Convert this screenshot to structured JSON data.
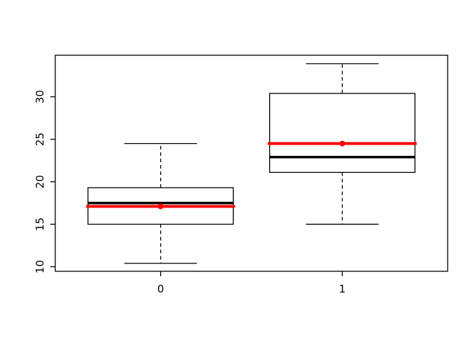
{
  "window": {
    "background": "#FFFFFF"
  },
  "chart_data": {
    "type": "boxplot",
    "title": "",
    "xlabel": "",
    "ylabel": "",
    "categories": [
      "0",
      "1"
    ],
    "x_tick_labels": [
      "0",
      "1"
    ],
    "y_tick_labels": [
      "10",
      "15",
      "20",
      "25",
      "30"
    ],
    "y_ticks": [
      10,
      15,
      20,
      25,
      30
    ],
    "ylim": [
      9.46,
      34.89
    ],
    "xlim": [
      0.42,
      2.58
    ],
    "positions": [
      1,
      2
    ],
    "box_half_width": 0.4,
    "staple_half_width": 0.2,
    "mean_line_half_width": 0.41,
    "grid": false,
    "legend": false,
    "series": [
      {
        "name": "0",
        "whisker_low": 10.4,
        "q1": 15.0,
        "median": 17.5,
        "q3": 19.3,
        "whisker_high": 24.5,
        "mean": 17.1,
        "outliers": []
      },
      {
        "name": "1",
        "whisker_low": 15.0,
        "q1": 21.1,
        "median": 22.9,
        "q3": 30.4,
        "whisker_high": 33.9,
        "mean": 24.5,
        "outliers": []
      }
    ],
    "colors": {
      "box_border": "#000000",
      "median_line": "#000000",
      "mean_line": "#FF0000",
      "mean_point": "#FF0000",
      "whisker": "#000000",
      "axis": "#000000",
      "text": "#000000",
      "background": "#FFFFFF"
    }
  }
}
